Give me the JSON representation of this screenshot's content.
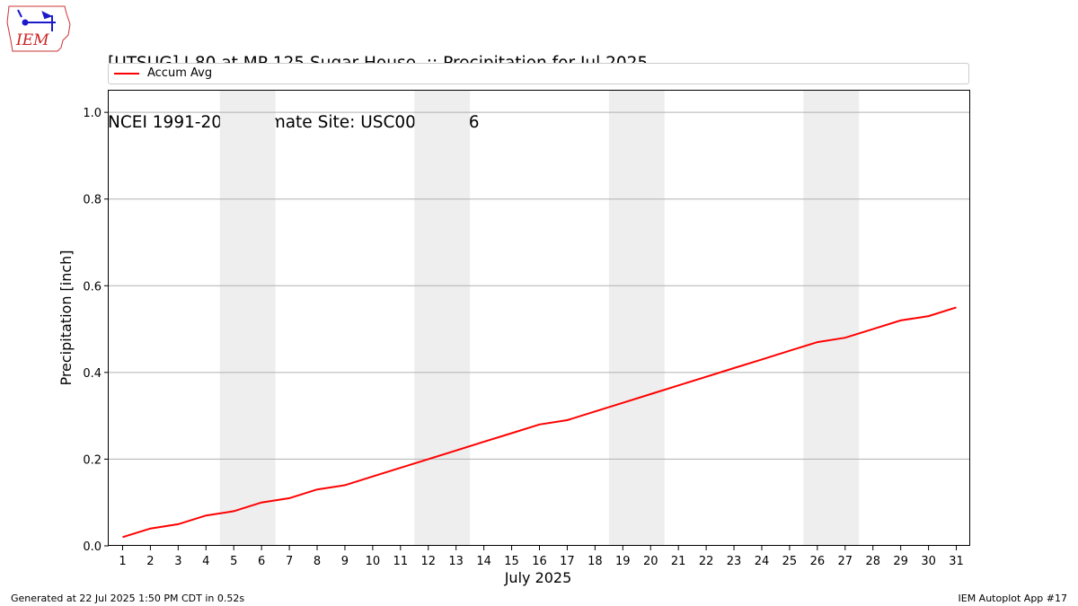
{
  "title": {
    "line1": "[UTSUG] I-80 at MP 125 Sugar House  :: Precipitation for Jul 2025",
    "line2": "NCEI 1991-2020 Climate Site: USC00427606"
  },
  "logo": {
    "text": "IEM",
    "icon": "iem-iowa-logo-icon"
  },
  "footer": {
    "left": "Generated at 22 Jul 2025 1:50 PM CDT in 0.52s",
    "right": "IEM Autoplot App #17"
  },
  "colors": {
    "line": "#ff0000",
    "weekend": "#eeeeee",
    "grid": "#b0b0b0"
  },
  "chart_data": {
    "type": "line",
    "xlabel": "July 2025",
    "ylabel": "Precipitation [inch]",
    "ylim": [
      0,
      1.05
    ],
    "xlim": [
      0.5,
      31.5
    ],
    "yticks": [
      "0.0",
      "0.2",
      "0.4",
      "0.6",
      "0.8",
      "1.0"
    ],
    "ytick_values": [
      0,
      0.2,
      0.4,
      0.6,
      0.8,
      1.0
    ],
    "x": [
      1,
      2,
      3,
      4,
      5,
      6,
      7,
      8,
      9,
      10,
      11,
      12,
      13,
      14,
      15,
      16,
      17,
      18,
      19,
      20,
      21,
      22,
      23,
      24,
      25,
      26,
      27,
      28,
      29,
      30,
      31
    ],
    "grid": "horizontal",
    "legend_placement": "top",
    "weekend_shading": [
      [
        5,
        6
      ],
      [
        12,
        13
      ],
      [
        19,
        20
      ],
      [
        26,
        27
      ]
    ],
    "series": [
      {
        "name": "Accum Avg",
        "values": [
          0.02,
          0.04,
          0.05,
          0.07,
          0.08,
          0.1,
          0.11,
          0.13,
          0.14,
          0.16,
          0.18,
          0.2,
          0.22,
          0.24,
          0.26,
          0.28,
          0.29,
          0.31,
          0.33,
          0.35,
          0.37,
          0.39,
          0.41,
          0.43,
          0.45,
          0.47,
          0.48,
          0.5,
          0.52,
          0.53,
          0.55
        ]
      }
    ]
  }
}
